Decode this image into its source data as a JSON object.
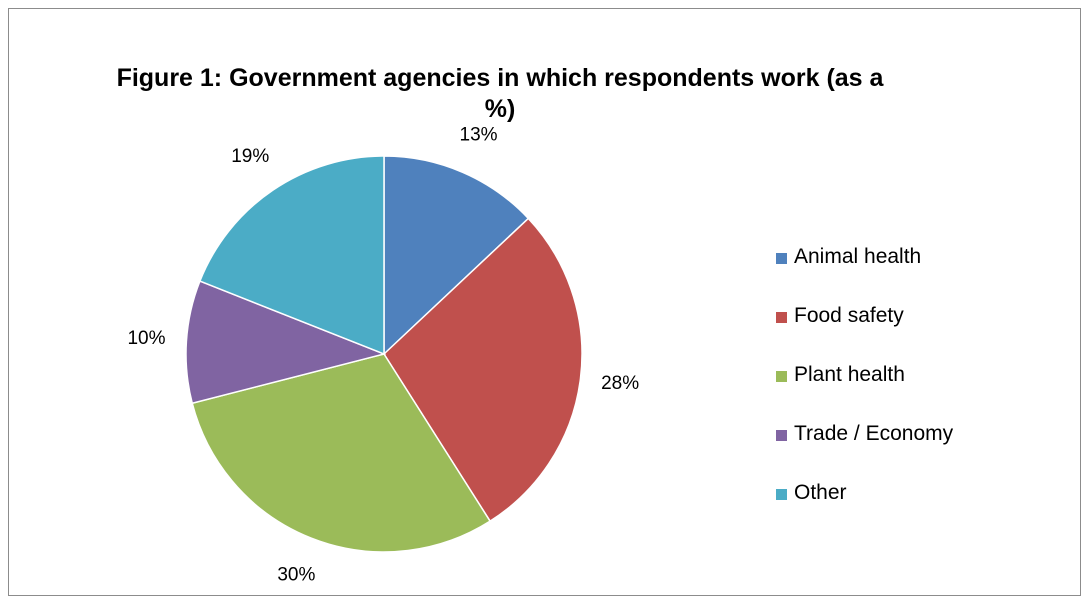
{
  "chart_data": {
    "type": "pie",
    "title": "Figure 1: Government agencies in which respondents work (as a %)",
    "categories": [
      "Animal health",
      "Food safety",
      "Plant health",
      "Trade / Economy",
      "Other"
    ],
    "values": [
      13,
      28,
      30,
      10,
      19
    ],
    "data_labels": [
      "13%",
      "28%",
      "30%",
      "10%",
      "19%"
    ],
    "colors": [
      "#4F81BD",
      "#C0504D",
      "#9BBB59",
      "#8064A2",
      "#4BACC6"
    ],
    "legend_position": "right",
    "start_angle": "12 o'clock, clockwise"
  }
}
